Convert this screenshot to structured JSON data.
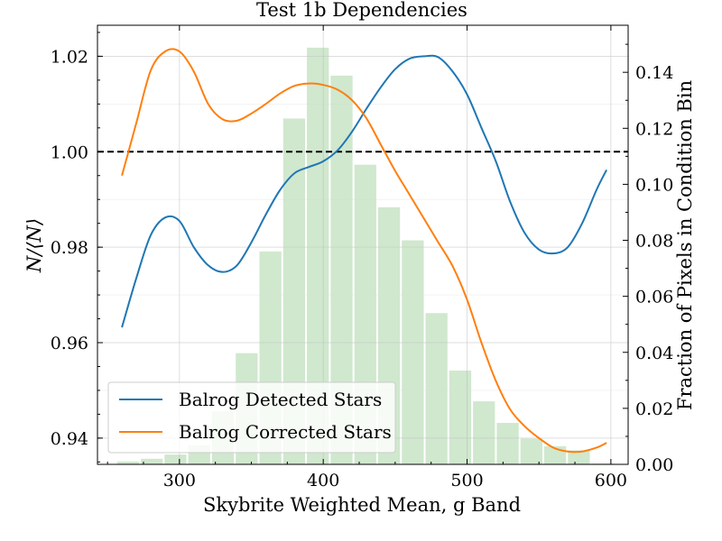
{
  "chart_data": {
    "type": "line",
    "title": "Test 1b Dependencies",
    "xlabel": "Skybrite Weighted Mean, g Band",
    "ylabel": "N/⟨N⟩",
    "ylabel_right": "Fraction of Pixels in Condition Bin",
    "xlim": [
      243,
      612
    ],
    "ylim": [
      0.9345,
      1.0265
    ],
    "ylim_right": [
      0.0,
      0.1568
    ],
    "x_ticks": [
      300,
      400,
      500,
      600
    ],
    "x_tick_labels": [
      "300",
      "400",
      "500",
      "600"
    ],
    "y_ticks": [
      0.94,
      0.96,
      0.98,
      1.0,
      1.02
    ],
    "y_tick_labels": [
      "0.94",
      "0.96",
      "0.98",
      "1.00",
      "1.02"
    ],
    "y_ticks_right": [
      0.0,
      0.02,
      0.04,
      0.06,
      0.08,
      0.1,
      0.12,
      0.14
    ],
    "y_tick_labels_right": [
      "0.00",
      "0.02",
      "0.04",
      "0.06",
      "0.08",
      "0.10",
      "0.12",
      "0.14"
    ],
    "grid": true,
    "reference_line": {
      "y": 1.0,
      "style": "dashed",
      "color": "#000000"
    },
    "legend_position": "lower-left",
    "series": [
      {
        "name": "Balrog Detected Stars",
        "color": "#1f77b4",
        "x": [
          260,
          270,
          280,
          290,
          300,
          310,
          320,
          330,
          340,
          350,
          360,
          370,
          380,
          390,
          400,
          410,
          420,
          430,
          440,
          450,
          460,
          470,
          480,
          490,
          500,
          510,
          520,
          530,
          540,
          550,
          560,
          570,
          580,
          590,
          597
        ],
        "y": [
          0.9632,
          0.9735,
          0.9825,
          0.9862,
          0.9855,
          0.98,
          0.9762,
          0.9748,
          0.9762,
          0.981,
          0.9868,
          0.992,
          0.9955,
          0.9968,
          0.998,
          1.0003,
          1.0042,
          1.009,
          1.0135,
          1.0173,
          1.0195,
          1.02,
          1.0198,
          1.0168,
          1.012,
          1.005,
          0.998,
          0.9895,
          0.983,
          0.9795,
          0.9787,
          0.98,
          0.985,
          0.992,
          0.9962
        ]
      },
      {
        "name": "Balrog Corrected Stars",
        "color": "#ff7f0e",
        "x": [
          260,
          270,
          280,
          290,
          300,
          310,
          320,
          330,
          340,
          350,
          360,
          370,
          380,
          390,
          400,
          410,
          420,
          430,
          440,
          450,
          460,
          470,
          480,
          490,
          500,
          510,
          520,
          530,
          540,
          550,
          560,
          570,
          580,
          590,
          597
        ],
        "y": [
          0.995,
          1.006,
          1.017,
          1.021,
          1.021,
          1.0168,
          1.01,
          1.0068,
          1.0065,
          1.008,
          1.01,
          1.0122,
          1.0138,
          1.0143,
          1.014,
          1.013,
          1.0108,
          1.007,
          1.0015,
          0.996,
          0.991,
          0.986,
          0.981,
          0.976,
          0.969,
          0.96,
          0.952,
          0.946,
          0.9425,
          0.94,
          0.938,
          0.9372,
          0.9372,
          0.938,
          0.939
        ]
      }
    ],
    "histogram": {
      "axis": "right",
      "color": "#a9d6a6",
      "bin_edges": [
        256,
        272.5,
        289,
        305.5,
        322,
        338.5,
        355,
        371.5,
        388,
        404.5,
        421,
        437.5,
        454,
        470.5,
        487,
        503.5,
        520,
        536.5,
        553,
        569.5,
        586,
        602.5
      ],
      "values": [
        0.001,
        0.002,
        0.0035,
        0.0068,
        0.019,
        0.0397,
        0.076,
        0.1235,
        0.1488,
        0.1388,
        0.107,
        0.0918,
        0.08,
        0.054,
        0.0335,
        0.0225,
        0.0148,
        0.0092,
        0.0065,
        0.005,
        0.0003
      ]
    }
  }
}
